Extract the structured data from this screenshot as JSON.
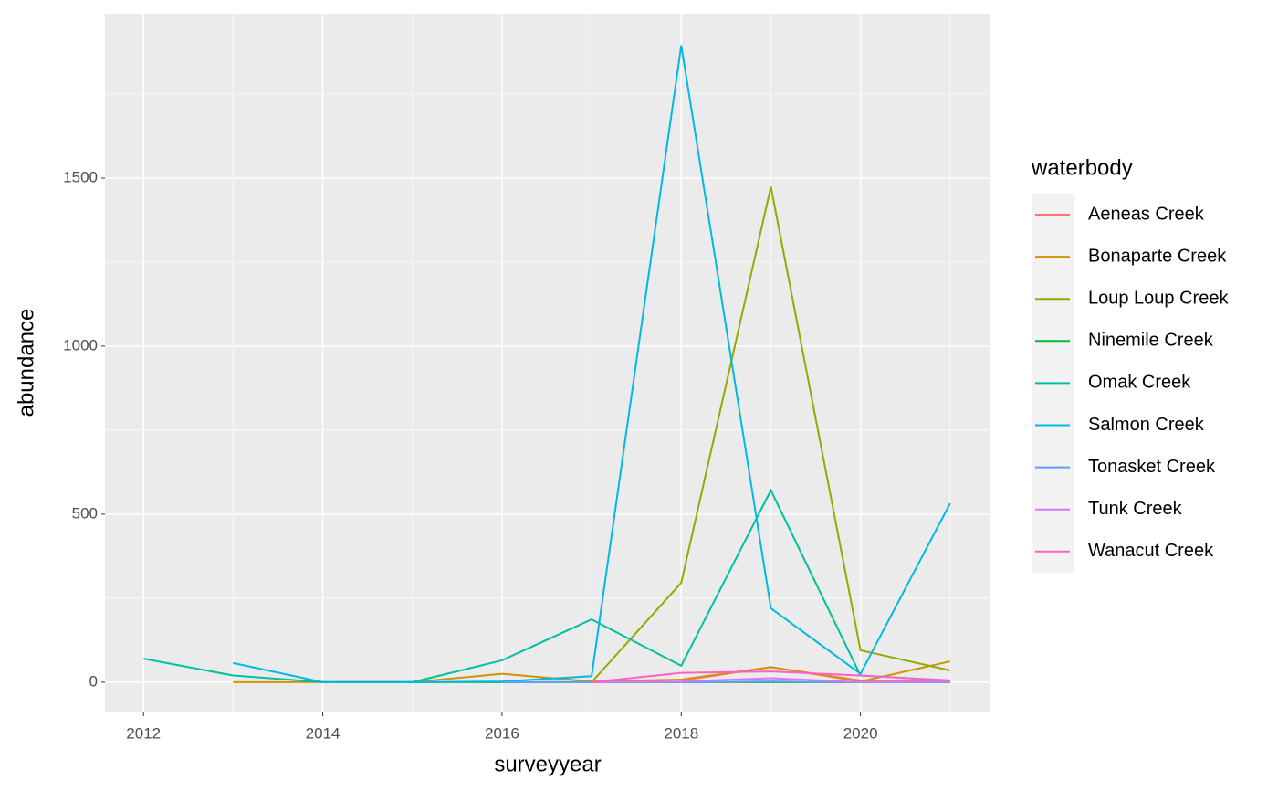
{
  "chart_data": {
    "type": "line",
    "x_label": "surveyyear",
    "y_label": "abundance",
    "legend_title": "waterbody",
    "legend_position": "right",
    "grid": true,
    "x": [
      2012,
      2013,
      2014,
      2015,
      2016,
      2017,
      2018,
      2019,
      2020,
      2021
    ],
    "xlim": [
      2011.57,
      2021.45
    ],
    "xticks": [
      2012,
      2014,
      2016,
      2018,
      2020
    ],
    "ylim": [
      -90,
      1989
    ],
    "yticks": [
      0,
      500,
      1000,
      1500
    ],
    "series": [
      {
        "name": "Aeneas Creek",
        "color": "#F8766D",
        "values": [
          null,
          null,
          null,
          null,
          null,
          null,
          5,
          45,
          5,
          5
        ]
      },
      {
        "name": "Bonaparte Creek",
        "color": "#D39200",
        "values": [
          null,
          0,
          0,
          0,
          25,
          2,
          8,
          45,
          2,
          62
        ]
      },
      {
        "name": "Loup Loup Creek",
        "color": "#93AA00",
        "values": [
          null,
          null,
          null,
          null,
          null,
          0,
          296,
          1474,
          95,
          35
        ]
      },
      {
        "name": "Ninemile Creek",
        "color": "#00BA38",
        "values": [
          null,
          null,
          0,
          0,
          0,
          0,
          0,
          0,
          0,
          0
        ]
      },
      {
        "name": "Omak Creek",
        "color": "#00C19F",
        "values": [
          70,
          20,
          0,
          0,
          65,
          187,
          49,
          571,
          20,
          5
        ]
      },
      {
        "name": "Salmon Creek",
        "color": "#00B9E3",
        "values": [
          null,
          57,
          0,
          0,
          2,
          18,
          1895,
          220,
          25,
          532
        ]
      },
      {
        "name": "Tonasket Creek",
        "color": "#619CFF",
        "values": [
          null,
          null,
          null,
          null,
          0,
          0,
          0,
          2,
          0,
          0
        ]
      },
      {
        "name": "Tunk Creek",
        "color": "#DB72FB",
        "values": [
          null,
          null,
          null,
          null,
          null,
          0,
          2,
          12,
          0,
          2
        ]
      },
      {
        "name": "Wanacut Creek",
        "color": "#FF61C3",
        "values": [
          null,
          null,
          null,
          null,
          null,
          0,
          28,
          32,
          20,
          5
        ]
      }
    ]
  }
}
